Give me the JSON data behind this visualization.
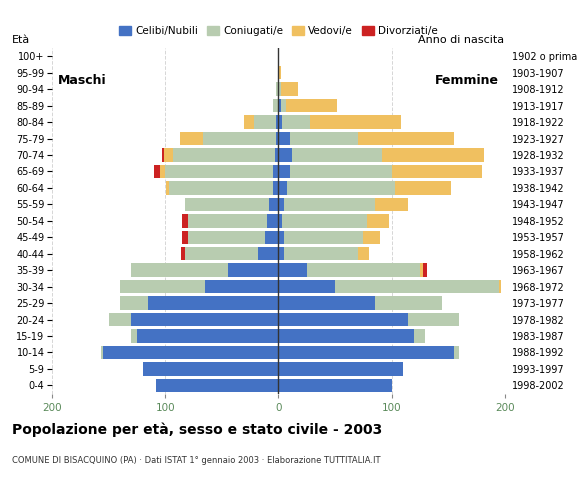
{
  "age_groups": [
    "0-4",
    "5-9",
    "10-14",
    "15-19",
    "20-24",
    "25-29",
    "30-34",
    "35-39",
    "40-44",
    "45-49",
    "50-54",
    "55-59",
    "60-64",
    "65-69",
    "70-74",
    "75-79",
    "80-84",
    "85-89",
    "90-94",
    "95-99",
    "100+"
  ],
  "birth_years": [
    "1998-2002",
    "1993-1997",
    "1988-1992",
    "1983-1987",
    "1978-1982",
    "1973-1977",
    "1968-1972",
    "1963-1967",
    "1958-1962",
    "1953-1957",
    "1948-1952",
    "1943-1947",
    "1938-1942",
    "1933-1937",
    "1928-1932",
    "1923-1927",
    "1918-1922",
    "1913-1917",
    "1908-1912",
    "1903-1907",
    "1902 o prima"
  ],
  "males": {
    "celibe": [
      108,
      120,
      155,
      125,
      130,
      115,
      65,
      45,
      18,
      12,
      10,
      8,
      5,
      5,
      3,
      2,
      2,
      0,
      0,
      0,
      0
    ],
    "coniugato": [
      0,
      0,
      2,
      5,
      20,
      25,
      75,
      85,
      65,
      68,
      70,
      75,
      92,
      95,
      90,
      65,
      20,
      5,
      2,
      0,
      0
    ],
    "vedovo": [
      0,
      0,
      0,
      0,
      0,
      0,
      0,
      0,
      0,
      0,
      0,
      0,
      2,
      5,
      8,
      20,
      8,
      0,
      0,
      0,
      0
    ],
    "divorziato": [
      0,
      0,
      0,
      0,
      0,
      0,
      0,
      0,
      3,
      5,
      5,
      0,
      0,
      5,
      2,
      0,
      0,
      0,
      0,
      0,
      0
    ]
  },
  "females": {
    "celibe": [
      100,
      110,
      155,
      120,
      115,
      85,
      50,
      25,
      5,
      5,
      3,
      5,
      8,
      10,
      12,
      10,
      3,
      2,
      0,
      0,
      0
    ],
    "coniugato": [
      0,
      0,
      5,
      10,
      45,
      60,
      145,
      100,
      65,
      70,
      75,
      80,
      95,
      90,
      80,
      60,
      25,
      5,
      2,
      0,
      0
    ],
    "vedovo": [
      0,
      0,
      0,
      0,
      0,
      0,
      2,
      3,
      10,
      15,
      20,
      30,
      50,
      80,
      90,
      85,
      80,
      45,
      15,
      2,
      0
    ],
    "divorziato": [
      0,
      0,
      0,
      0,
      0,
      0,
      0,
      3,
      0,
      0,
      0,
      0,
      0,
      0,
      0,
      0,
      0,
      0,
      0,
      0,
      0
    ]
  },
  "colors": {
    "celibe": "#4472C4",
    "coniugato": "#B8CCB0",
    "vedovo": "#F0C060",
    "divorziato": "#CC2222"
  },
  "xlim": 200,
  "title": "Popolazione per età, sesso e stato civile - 2003",
  "subtitle": "COMUNE DI BISACQUINO (PA) · Dati ISTAT 1° gennaio 2003 · Elaborazione TUTTITALIA.IT",
  "legend_labels": [
    "Celibi/Nubili",
    "Coniugati/e",
    "Vedovi/e",
    "Divorziati/e"
  ],
  "ylabel": "Età",
  "ylabel_right": "Anno di nascita",
  "label_maschi": "Maschi",
  "label_femmine": "Femmine",
  "xticks": [
    -200,
    -100,
    0,
    100,
    200
  ],
  "grid_color": "#cccccc",
  "bg_color": "#ffffff"
}
